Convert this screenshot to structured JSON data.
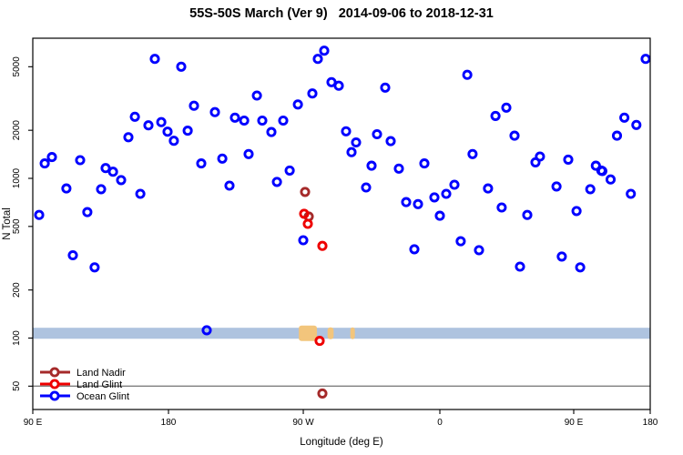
{
  "chart_data": {
    "type": "scatter",
    "title": "55S-50S March (Ver 9)   2014-09-06 to 2018-12-31",
    "xlabel": "Longitude (deg E)",
    "ylabel": "N Total",
    "x_axis": {
      "note": "longitude wrapped eastward; 90E..180..90W..0..90E..180",
      "range_deg": [
        90,
        540
      ],
      "ticks": [
        {
          "deg": 90,
          "label": "90 E"
        },
        {
          "deg": 180,
          "label": "180"
        },
        {
          "deg": 270,
          "label": "90 W"
        },
        {
          "deg": 360,
          "label": "0"
        },
        {
          "deg": 450,
          "label": "90 E"
        },
        {
          "deg": 540,
          "label": "180"
        }
      ]
    },
    "y_axis": {
      "scale": "log10",
      "range": [
        40,
        7000
      ],
      "ticks": [
        50,
        100,
        200,
        500,
        1000,
        2000,
        5000
      ]
    },
    "grid": false,
    "legend_position": "bottom-left",
    "threshold_line": {
      "n": 50,
      "color": "#7F7F7F"
    },
    "latitude_band_map": {
      "n_range": [
        99,
        116
      ],
      "ocean_color": "#AEC3DF",
      "land_color": "#F2C57C",
      "land_patches_deg": [
        [
          267,
          279
        ],
        [
          286,
          290
        ],
        [
          301,
          304
        ]
      ]
    },
    "series": [
      {
        "name": "Land Nadir",
        "color": "#A52A2A",
        "points": [
          [
            271.2,
            822
          ],
          [
            273.6,
            577
          ],
          [
            282.6,
            45
          ]
        ]
      },
      {
        "name": "Land Glint",
        "color": "#EE0000",
        "points": [
          [
            270.6,
            600
          ],
          [
            273.0,
            519
          ],
          [
            282.6,
            378
          ],
          [
            280.8,
            96
          ]
        ]
      },
      {
        "name": "Ocean Glint",
        "color": "#0000FF",
        "points": [
          [
            170.9,
            5600
          ],
          [
            188.5,
            5000
          ],
          [
            197,
            2850
          ],
          [
            211,
            2600
          ],
          [
            224.4,
            2400
          ],
          [
            157.7,
            2430
          ],
          [
            166.7,
            2150
          ],
          [
            175.2,
            2250
          ],
          [
            179.4,
            1960
          ],
          [
            183.6,
            1720
          ],
          [
            192.8,
            1990
          ],
          [
            153.4,
            1810
          ],
          [
            102.7,
            1360
          ],
          [
            97.9,
            1240
          ],
          [
            121.4,
            1300
          ],
          [
            138.3,
            1160
          ],
          [
            143.2,
            1100
          ],
          [
            201.9,
            1240
          ],
          [
            215.9,
            1330
          ],
          [
            279.6,
            5600
          ],
          [
            283.8,
            6300
          ],
          [
            288.6,
            4000
          ],
          [
            293.4,
            3800
          ],
          [
            324,
            3700
          ],
          [
            276,
            3400
          ],
          [
            239,
            3300
          ],
          [
            266.4,
            2900
          ],
          [
            230.5,
            2300
          ],
          [
            242.6,
            2300
          ],
          [
            256.6,
            2300
          ],
          [
            248.7,
            1950
          ],
          [
            233.5,
            1420
          ],
          [
            260.9,
            1120
          ],
          [
            298.2,
            1970
          ],
          [
            304.8,
            1680
          ],
          [
            301.8,
            1460
          ],
          [
            318.6,
            1890
          ],
          [
            327.6,
            1710
          ],
          [
            315,
            1200
          ],
          [
            333,
            1150
          ],
          [
            349.8,
            1240
          ],
          [
            534.6,
            5600
          ],
          [
            378.4,
            4450
          ],
          [
            404.7,
            2770
          ],
          [
            397.4,
            2460
          ],
          [
            410.2,
            1850
          ],
          [
            382,
            1420
          ],
          [
            427.3,
            1370
          ],
          [
            424.3,
            1260
          ],
          [
            446.3,
            1310
          ],
          [
            476,
            1200
          ],
          [
            482.5,
            1120
          ],
          [
            509.6,
            2400
          ],
          [
            523.7,
            2160
          ],
          [
            500.9,
            1850
          ],
          [
            148.6,
            975
          ],
          [
            112.3,
            865
          ],
          [
            135.3,
            855
          ],
          [
            161.3,
            800
          ],
          [
            220.7,
            900
          ],
          [
            126.2,
            615
          ],
          [
            94.2,
            590
          ],
          [
            116.6,
            330
          ],
          [
            131,
            277
          ],
          [
            252.4,
            950
          ],
          [
            311.4,
            877
          ],
          [
            337.8,
            710
          ],
          [
            345.6,
            690
          ],
          [
            356.4,
            760
          ],
          [
            364.3,
            800
          ],
          [
            360,
            583
          ],
          [
            270,
            410
          ],
          [
            343.2,
            360
          ],
          [
            369.8,
            912
          ],
          [
            392.4,
            865
          ],
          [
            401.6,
            657
          ],
          [
            418.8,
            590
          ],
          [
            438.4,
            890
          ],
          [
            453.3,
            624
          ],
          [
            469.5,
            855
          ],
          [
            483.6,
            1110
          ],
          [
            493.4,
            985
          ],
          [
            517.2,
            800
          ],
          [
            374,
            404
          ],
          [
            386.3,
            355
          ],
          [
            413.9,
            280
          ],
          [
            442,
            324
          ],
          [
            457.6,
            277
          ],
          [
            205.5,
            112
          ]
        ]
      }
    ]
  }
}
